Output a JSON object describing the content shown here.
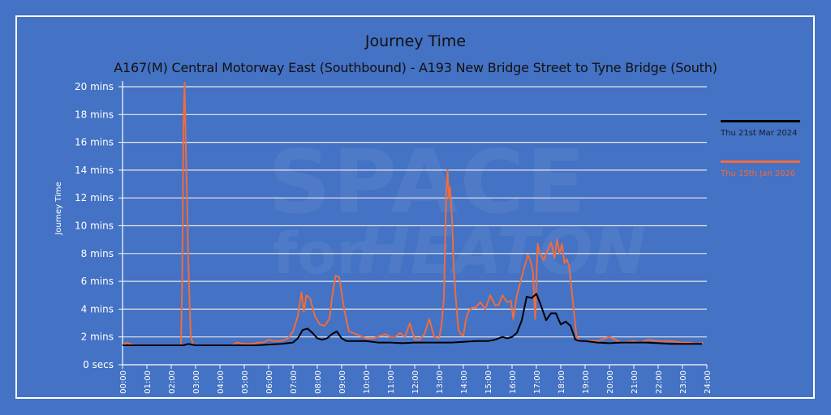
{
  "chart_data": {
    "type": "line",
    "title": "Journey Time",
    "subtitle": "A167(M) Central Motorway East (Southbound) - A193 New Bridge Street to Tyne Bridge (South)",
    "xlabel": "",
    "ylabel": "Journey Time",
    "x_unit": "hours",
    "y_unit": "minutes",
    "xlim": [
      0,
      24
    ],
    "ylim": [
      0,
      20
    ],
    "grid": true,
    "legend_position": "right",
    "x_tick_labels": [
      "00:00",
      "01:00",
      "02:00",
      "03:00",
      "04:00",
      "05:00",
      "06:00",
      "07:00",
      "08:00",
      "09:00",
      "10:00",
      "11:00",
      "12:00",
      "13:00",
      "14:00",
      "15:00",
      "16:00",
      "17:00",
      "18:00",
      "19:00",
      "20:00",
      "21:00",
      "22:00",
      "23:00",
      "24:00"
    ],
    "y_tick_labels": [
      "0 secs",
      "2 mins",
      "4 mins",
      "6 mins",
      "8 mins",
      "10 mins",
      "12 mins",
      "14 mins",
      "16 mins",
      "18 mins",
      "20 mins"
    ],
    "y_tick_values": [
      0,
      2,
      4,
      6,
      8,
      10,
      12,
      14,
      16,
      18,
      20
    ],
    "series": [
      {
        "name": "Thu 21st Mar 2024",
        "color": "#000000",
        "x": [
          0,
          0.25,
          0.5,
          1,
          1.5,
          2,
          2.5,
          2.7,
          3,
          3.5,
          4,
          4.5,
          5,
          5.5,
          6,
          6.5,
          7,
          7.2,
          7.4,
          7.6,
          7.8,
          8,
          8.2,
          8.4,
          8.6,
          8.8,
          9,
          9.2,
          9.5,
          10,
          10.5,
          11,
          11.5,
          12,
          12.5,
          13,
          13.5,
          14,
          14.5,
          15,
          15.3,
          15.6,
          15.8,
          16,
          16.2,
          16.4,
          16.6,
          16.8,
          17,
          17.2,
          17.4,
          17.6,
          17.8,
          18,
          18.2,
          18.4,
          18.6,
          18.8,
          19,
          19.5,
          20,
          20.5,
          21,
          21.5,
          22,
          22.5,
          23,
          23.5,
          23.8
        ],
        "values": [
          1.4,
          1.4,
          1.4,
          1.4,
          1.4,
          1.4,
          1.4,
          1.5,
          1.4,
          1.4,
          1.4,
          1.4,
          1.4,
          1.4,
          1.45,
          1.5,
          1.6,
          1.9,
          2.5,
          2.6,
          2.3,
          1.9,
          1.8,
          1.9,
          2.2,
          2.4,
          1.9,
          1.7,
          1.7,
          1.7,
          1.6,
          1.6,
          1.55,
          1.6,
          1.6,
          1.6,
          1.6,
          1.65,
          1.7,
          1.7,
          1.8,
          2.0,
          1.9,
          2.0,
          2.3,
          3.2,
          4.9,
          4.8,
          5.1,
          4.2,
          3.2,
          3.7,
          3.7,
          2.9,
          3.1,
          2.8,
          1.8,
          1.7,
          1.7,
          1.6,
          1.55,
          1.6,
          1.6,
          1.6,
          1.55,
          1.5,
          1.5,
          1.5,
          1.5
        ]
      },
      {
        "name": "Thu 15th Jan 2026",
        "color": "#f26b3a",
        "x": [
          0,
          0.1,
          0.2,
          0.3,
          0.5,
          1,
          1.5,
          2,
          2.4,
          2.45,
          2.5,
          2.55,
          2.6,
          2.65,
          2.7,
          2.8,
          2.9,
          3,
          3.5,
          4,
          4.5,
          4.7,
          5,
          5.3,
          5.6,
          5.8,
          6,
          6.2,
          6.5,
          6.8,
          7,
          7.2,
          7.35,
          7.45,
          7.55,
          7.7,
          7.9,
          8.1,
          8.3,
          8.5,
          8.6,
          8.75,
          8.9,
          9.1,
          9.3,
          9.6,
          10,
          10.3,
          10.6,
          10.8,
          11,
          11.2,
          11.4,
          11.6,
          11.8,
          12,
          12.2,
          12.4,
          12.6,
          12.8,
          13,
          13.1,
          13.2,
          13.3,
          13.35,
          13.4,
          13.45,
          13.5,
          13.55,
          13.6,
          13.7,
          13.8,
          13.9,
          14,
          14.1,
          14.2,
          14.35,
          14.5,
          14.7,
          14.9,
          15.1,
          15.3,
          15.45,
          15.6,
          15.8,
          15.95,
          16.05,
          16.2,
          16.35,
          16.5,
          16.65,
          16.75,
          16.85,
          16.95,
          17.05,
          17.15,
          17.3,
          17.45,
          17.6,
          17.75,
          17.85,
          17.95,
          18.05,
          18.15,
          18.25,
          18.35,
          18.5,
          18.65,
          18.8,
          19,
          19.5,
          20,
          20.5,
          21,
          21.3,
          21.6,
          22,
          22.5,
          23,
          23.3,
          23.6,
          23.85
        ],
        "values": [
          1.4,
          1.5,
          1.6,
          1.5,
          1.4,
          1.4,
          1.4,
          1.4,
          1.4,
          6.0,
          17.0,
          20.3,
          15.5,
          12.0,
          7.5,
          2.0,
          1.5,
          1.4,
          1.4,
          1.4,
          1.4,
          1.6,
          1.5,
          1.5,
          1.6,
          1.6,
          1.8,
          1.7,
          1.7,
          1.9,
          2.4,
          3.5,
          5.2,
          3.8,
          5.0,
          4.8,
          3.5,
          2.9,
          2.8,
          3.3,
          4.8,
          6.4,
          6.3,
          4.0,
          2.4,
          2.2,
          1.9,
          1.9,
          2.1,
          2.2,
          2.0,
          2.0,
          2.3,
          2.0,
          3.0,
          1.8,
          1.8,
          2.2,
          3.3,
          2.0,
          1.9,
          2.8,
          4.8,
          12.5,
          14.0,
          12.0,
          12.8,
          11.5,
          10.0,
          7.0,
          4.5,
          2.5,
          2.2,
          2.1,
          3.2,
          3.8,
          4.1,
          4.1,
          4.5,
          4.0,
          5.0,
          4.3,
          4.3,
          5.0,
          4.5,
          4.6,
          3.3,
          5.0,
          6.0,
          7.0,
          7.9,
          7.5,
          6.8,
          3.3,
          8.7,
          8.0,
          7.5,
          8.2,
          8.8,
          7.7,
          9.0,
          8.0,
          8.7,
          7.3,
          7.6,
          7.0,
          4.5,
          2.0,
          1.7,
          1.7,
          1.7,
          2.0,
          1.6,
          1.7,
          1.6,
          1.8,
          1.7,
          1.7,
          1.6,
          1.6,
          1.5,
          1.6
        ]
      }
    ]
  },
  "watermark": {
    "line1": "SPACE",
    "line2a": "for",
    "line2b": "HEATON"
  },
  "legend": [
    {
      "label": "Thu 21st Mar 2024",
      "color": "#000000"
    },
    {
      "label": "Thu 15th Jan 2026",
      "color": "#f26b3a"
    }
  ],
  "colors": {
    "background": "#4472c4",
    "grid": "#ffffff",
    "axis": "#ffffff"
  }
}
